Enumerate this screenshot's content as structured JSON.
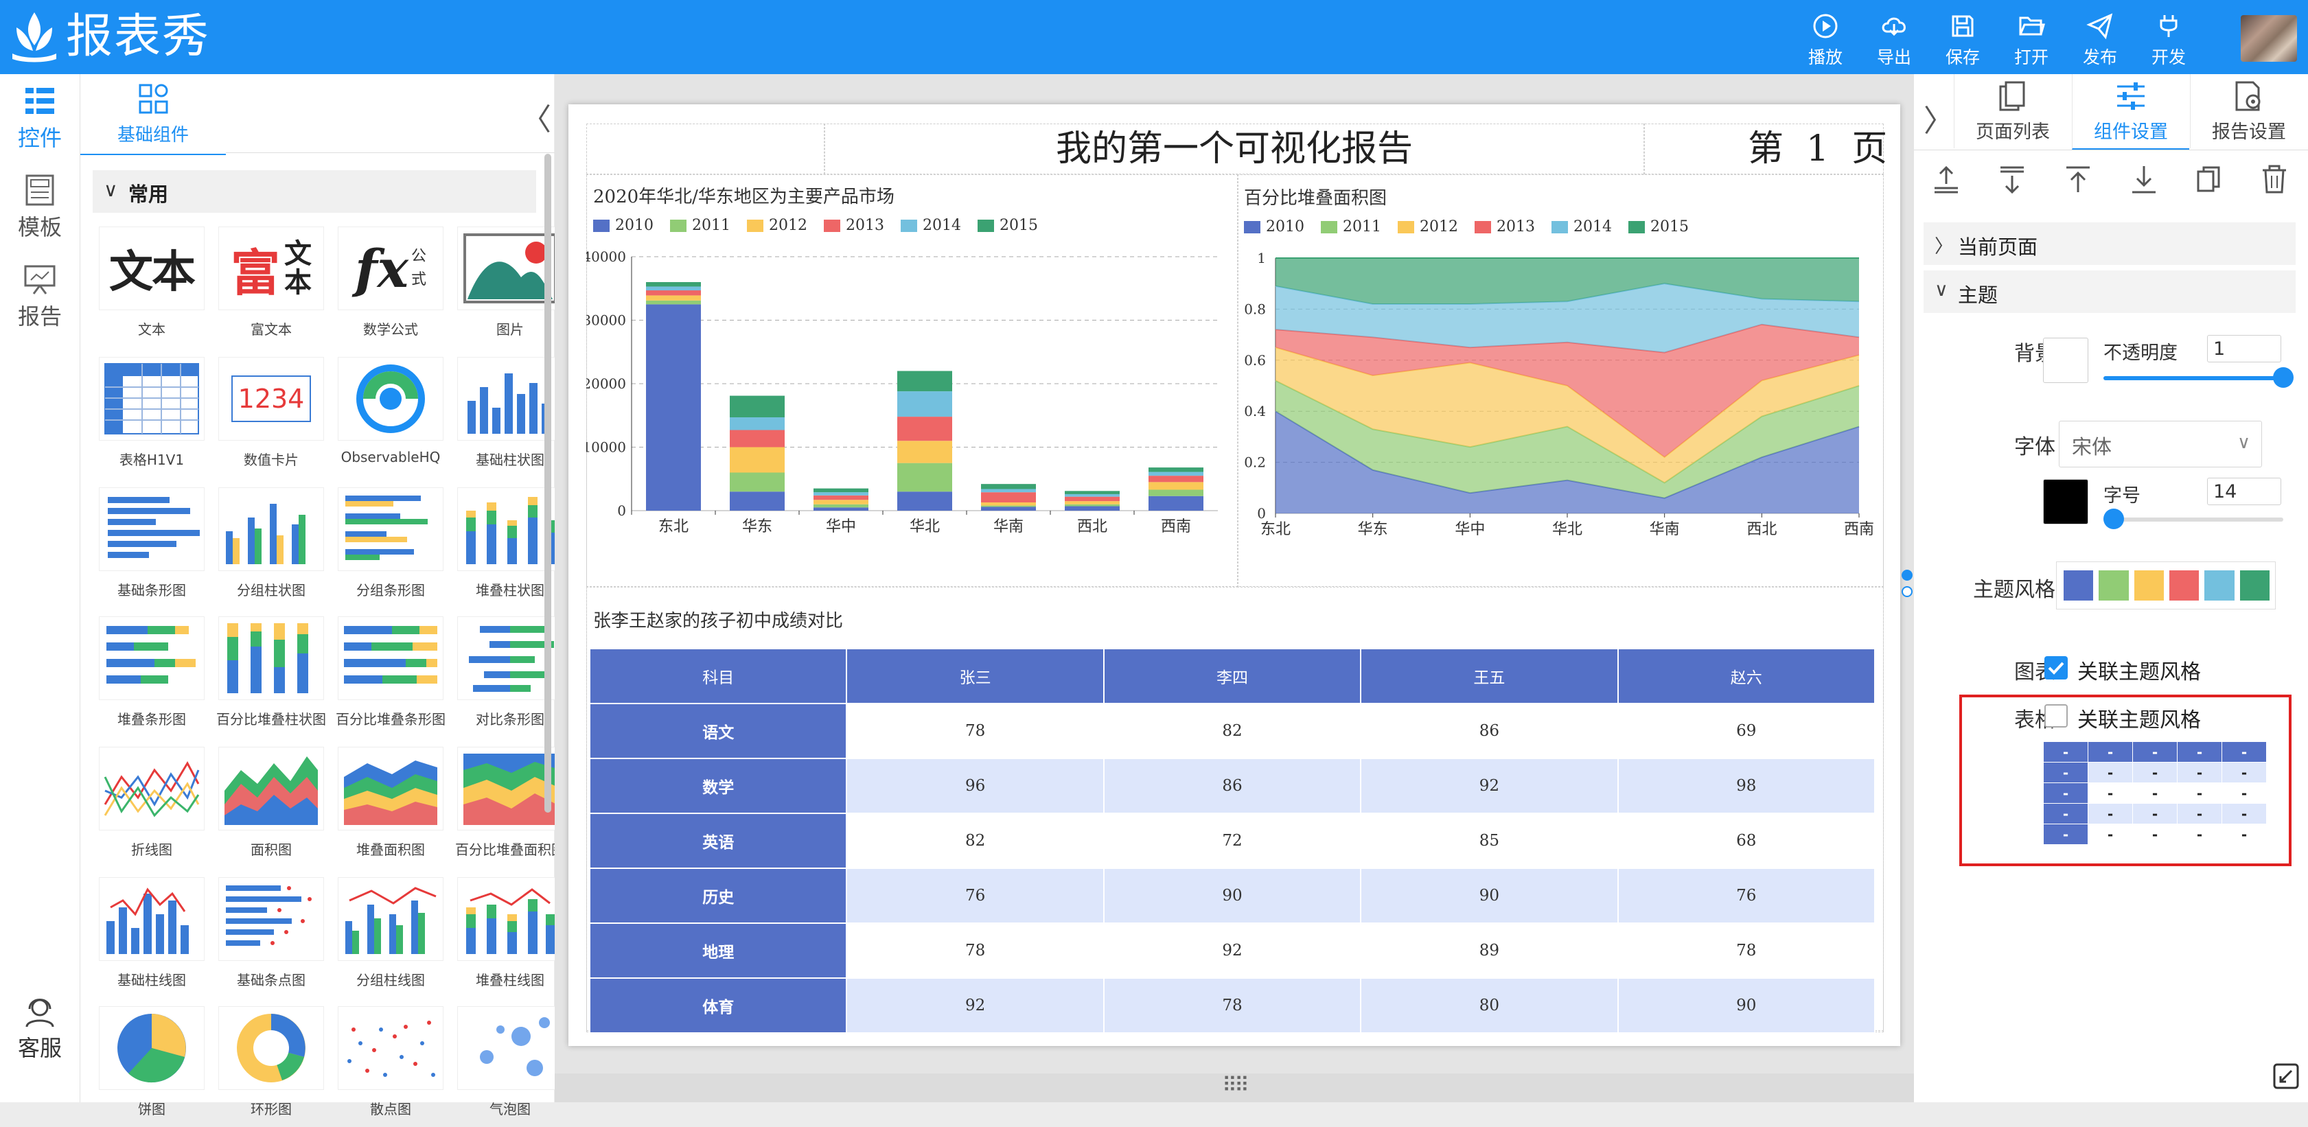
{
  "app": {
    "name": "报表秀"
  },
  "toolbar": [
    {
      "id": "play",
      "label": "播放",
      "icon": "play-icon"
    },
    {
      "id": "export",
      "label": "导出",
      "icon": "cloud-download-icon"
    },
    {
      "id": "save",
      "label": "保存",
      "icon": "save-icon"
    },
    {
      "id": "open",
      "label": "打开",
      "icon": "folder-open-icon"
    },
    {
      "id": "publish",
      "label": "发布",
      "icon": "send-icon"
    },
    {
      "id": "develop",
      "label": "开发",
      "icon": "plug-icon"
    }
  ],
  "left_nav": {
    "items": [
      {
        "label": "控件",
        "icon": "controls-list-icon",
        "active": true
      },
      {
        "label": "模板",
        "icon": "template-icon",
        "active": false
      },
      {
        "label": "报告",
        "icon": "report-presentation-icon",
        "active": false
      }
    ],
    "support": {
      "label": "客服",
      "icon": "customer-service-icon"
    }
  },
  "component_panel": {
    "tab_label": "基础组件",
    "group_label": "常用",
    "components": [
      "文本",
      "富文本",
      "数学公式",
      "图片",
      "表格H1V1",
      "数值卡片",
      "ObservableHQ",
      "基础柱状图",
      "基础条形图",
      "分组柱状图",
      "分组条形图",
      "堆叠柱状图",
      "堆叠条形图",
      "百分比堆叠柱状图",
      "百分比堆叠条形图",
      "对比条形图",
      "折线图",
      "面积图",
      "堆叠面积图",
      "百分比堆叠面积图",
      "基础柱线图",
      "基础条点图",
      "分组柱线图",
      "堆叠柱线图",
      "饼图",
      "环形图",
      "散点图",
      "气泡图"
    ],
    "thumb_text": {
      "text": "文本",
      "rich_a": "富",
      "rich_b": "文",
      "rich_c": "本",
      "fx": "fx",
      "fx_a": "公",
      "fx_b": "式",
      "card": "1234"
    }
  },
  "report": {
    "title": "我的第一个可视化报告",
    "page_number": "第  1  页",
    "palette": [
      "#5470c6",
      "#91cc75",
      "#fac858",
      "#ee6666",
      "#73c0de",
      "#3ba272"
    ],
    "table_title": "张李王赵家的孩子初中成绩对比",
    "table": {
      "headers": [
        "科目",
        "张三",
        "李四",
        "王五",
        "赵六"
      ],
      "rows": [
        [
          "语文",
          "78",
          "82",
          "86",
          "69"
        ],
        [
          "数学",
          "96",
          "86",
          "92",
          "98"
        ],
        [
          "英语",
          "82",
          "72",
          "85",
          "68"
        ],
        [
          "历史",
          "76",
          "90",
          "90",
          "76"
        ],
        [
          "地理",
          "78",
          "92",
          "89",
          "78"
        ],
        [
          "体育",
          "92",
          "78",
          "80",
          "90"
        ]
      ]
    }
  },
  "chart_data": [
    {
      "type": "bar",
      "stacked": true,
      "title": "2020年华北/华东地区为主要产品市场",
      "categories": [
        "东北",
        "华东",
        "华中",
        "华北",
        "华南",
        "西北",
        "西南"
      ],
      "ylim": [
        0,
        40000
      ],
      "yticks": [
        0,
        10000,
        20000,
        30000,
        40000
      ],
      "grid": true,
      "legend": "top-left",
      "series": [
        {
          "name": "2010",
          "values": [
            32500,
            3000,
            500,
            3000,
            600,
            700,
            2300
          ]
        },
        {
          "name": "2011",
          "values": [
            600,
            3000,
            500,
            4500,
            200,
            300,
            1000
          ]
        },
        {
          "name": "2012",
          "values": [
            800,
            4000,
            700,
            3500,
            500,
            500,
            1200
          ]
        },
        {
          "name": "2013",
          "values": [
            800,
            2700,
            700,
            3800,
            1600,
            700,
            1000
          ]
        },
        {
          "name": "2014",
          "values": [
            600,
            2000,
            500,
            4000,
            500,
            400,
            600
          ]
        },
        {
          "name": "2015",
          "values": [
            700,
            3400,
            600,
            3200,
            800,
            500,
            700
          ]
        }
      ]
    },
    {
      "type": "area",
      "stacked": true,
      "percent": true,
      "title": "百分比堆叠面积图",
      "categories": [
        "东北",
        "华东",
        "华中",
        "华北",
        "华南",
        "西北",
        "西南"
      ],
      "ylim": [
        0,
        1
      ],
      "yticks": [
        0,
        0.2,
        0.4,
        0.6,
        0.8,
        1
      ],
      "grid": true,
      "legend": "top-left",
      "series": [
        {
          "name": "2010",
          "values": [
            0.4,
            0.17,
            0.08,
            0.13,
            0.06,
            0.22,
            0.34
          ]
        },
        {
          "name": "2011",
          "values": [
            0.12,
            0.16,
            0.18,
            0.21,
            0.06,
            0.16,
            0.16
          ]
        },
        {
          "name": "2012",
          "values": [
            0.13,
            0.21,
            0.33,
            0.16,
            0.1,
            0.14,
            0.12
          ]
        },
        {
          "name": "2013",
          "values": [
            0.07,
            0.15,
            0.06,
            0.17,
            0.41,
            0.22,
            0.07
          ]
        },
        {
          "name": "2014",
          "values": [
            0.17,
            0.13,
            0.17,
            0.16,
            0.27,
            0.1,
            0.14
          ]
        },
        {
          "name": "2015",
          "values": [
            0.11,
            0.18,
            0.18,
            0.17,
            0.1,
            0.16,
            0.17
          ]
        }
      ]
    }
  ],
  "right_panel": {
    "tabs": [
      {
        "label": "页面列表",
        "icon": "page-list-icon",
        "active": false
      },
      {
        "label": "组件设置",
        "icon": "component-settings-icon",
        "active": true
      },
      {
        "label": "报告设置",
        "icon": "report-settings-icon",
        "active": false
      }
    ],
    "tools": [
      "move-top-icon",
      "align-vertical-center-icon",
      "move-up-icon",
      "move-down-icon",
      "copy-icon",
      "delete-icon"
    ],
    "sections": {
      "current_page": "当前页面",
      "theme": "主题"
    },
    "background": {
      "label": "背景",
      "opacity_label": "不透明度",
      "opacity_value": "1",
      "opacity": 1.0
    },
    "font": {
      "label": "字体",
      "value": "宋体",
      "size_label": "字号",
      "size_value": "14"
    },
    "theme_style": {
      "label": "主题风格"
    },
    "chart": {
      "label": "图表",
      "checkbox_label": "关联主题风格",
      "checked": true
    },
    "table": {
      "label": "表格",
      "checkbox_label": "关联主题风格",
      "checked": false,
      "cell": "-"
    }
  }
}
